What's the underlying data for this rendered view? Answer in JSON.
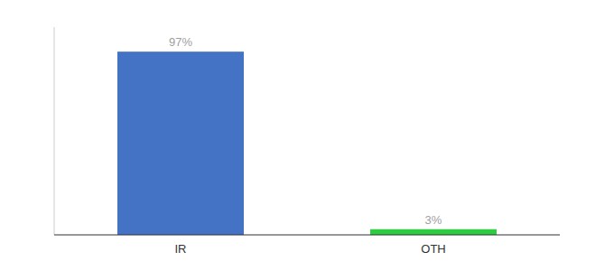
{
  "chart_data": {
    "type": "bar",
    "categories": [
      "IR",
      "OTH"
    ],
    "values": [
      97,
      3
    ],
    "value_labels": [
      "97%",
      "3%"
    ],
    "colors": [
      "#4472c4",
      "#2ecc40"
    ],
    "ylim": [
      0,
      110
    ],
    "data_labels": true,
    "tick_labels": "x",
    "grid": false
  }
}
